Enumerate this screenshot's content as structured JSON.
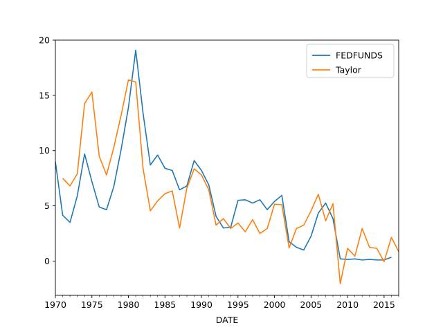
{
  "chart_data": {
    "type": "line",
    "title": "",
    "xlabel": "DATE",
    "ylabel": "",
    "xlim": [
      1970,
      2017
    ],
    "ylim": [
      -3.1,
      20.0
    ],
    "xticks": [
      1970,
      1975,
      1980,
      1985,
      1990,
      1995,
      2000,
      2005,
      2010,
      2015
    ],
    "yticks": [
      0,
      5,
      10,
      15,
      20
    ],
    "grid": false,
    "legend_position": "top-right",
    "series": [
      {
        "name": "FEDFUNDS",
        "color": "#1f77b4",
        "x": [
          1970,
          1971,
          1972,
          1973,
          1974,
          1975,
          1976,
          1977,
          1978,
          1979,
          1980,
          1981,
          1982,
          1983,
          1984,
          1985,
          1986,
          1987,
          1988,
          1989,
          1990,
          1991,
          1992,
          1993,
          1994,
          1995,
          1996,
          1997,
          1998,
          1999,
          2000,
          2001,
          2002,
          2003,
          2004,
          2005,
          2006,
          2007,
          2008,
          2009,
          2010,
          2011,
          2012,
          2013,
          2014,
          2015,
          2016
        ],
        "y": [
          9.0,
          4.15,
          3.5,
          5.9,
          9.7,
          7.2,
          4.9,
          4.65,
          6.75,
          10.1,
          13.9,
          19.1,
          13.4,
          8.7,
          9.6,
          8.4,
          8.2,
          6.45,
          6.8,
          9.1,
          8.2,
          6.9,
          4.05,
          3.0,
          3.05,
          5.5,
          5.55,
          5.25,
          5.55,
          4.65,
          5.4,
          5.95,
          1.75,
          1.25,
          1.0,
          2.25,
          4.35,
          5.25,
          3.85,
          0.2,
          0.15,
          0.2,
          0.1,
          0.15,
          0.1,
          0.1,
          0.35
        ]
      },
      {
        "name": "Taylor",
        "color": "#ff7f0e",
        "x": [
          1971,
          1972,
          1973,
          1974,
          1975,
          1976,
          1977,
          1978,
          1979,
          1980,
          1981,
          1982,
          1983,
          1984,
          1985,
          1986,
          1987,
          1988,
          1989,
          1990,
          1991,
          1992,
          1993,
          1994,
          1995,
          1996,
          1997,
          1998,
          1999,
          2000,
          2001,
          2002,
          2003,
          2004,
          2005,
          2006,
          2007,
          2008,
          2009,
          2010,
          2011,
          2012,
          2013,
          2014,
          2015,
          2016,
          2017
        ],
        "y": [
          7.5,
          6.8,
          7.9,
          14.25,
          15.3,
          9.5,
          7.8,
          10.3,
          13.2,
          16.4,
          16.2,
          8.4,
          4.55,
          5.45,
          6.1,
          6.35,
          3.0,
          6.6,
          8.35,
          7.8,
          6.45,
          3.25,
          3.85,
          2.95,
          3.45,
          2.65,
          3.75,
          2.5,
          2.95,
          5.15,
          5.1,
          1.2,
          2.95,
          3.25,
          4.55,
          6.05,
          3.65,
          5.2,
          -2.05,
          1.15,
          0.45,
          2.95,
          1.25,
          1.15,
          -0.05,
          2.15,
          0.85
        ]
      }
    ]
  }
}
